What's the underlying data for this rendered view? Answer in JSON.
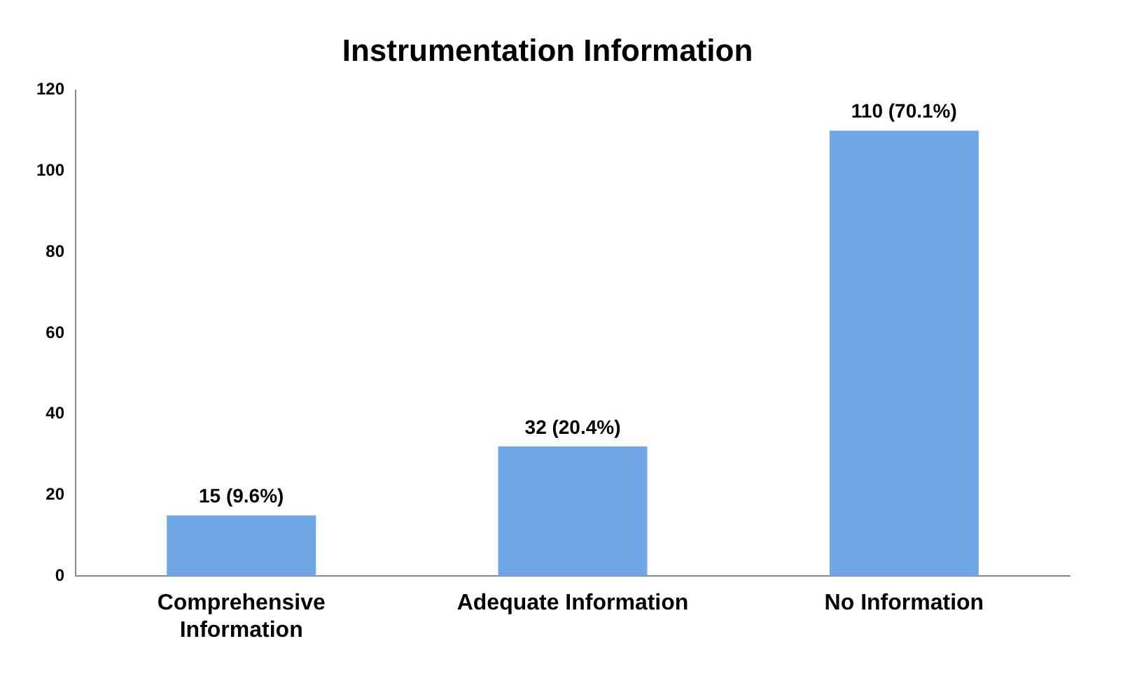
{
  "chart_data": {
    "type": "bar",
    "title": "Instrumentation Information",
    "categories": [
      "Comprehensive Information",
      "Adequate Information",
      "No Information"
    ],
    "values": [
      15,
      32,
      110
    ],
    "value_labels": [
      "15 (9.6%)",
      "32 (20.4%)",
      "110 (70.1%)"
    ],
    "color": "#6fa6e6",
    "ylim": [
      0,
      120
    ],
    "yticks": [
      0,
      20,
      40,
      60,
      80,
      100,
      120
    ],
    "grid": false,
    "legend": false
  }
}
